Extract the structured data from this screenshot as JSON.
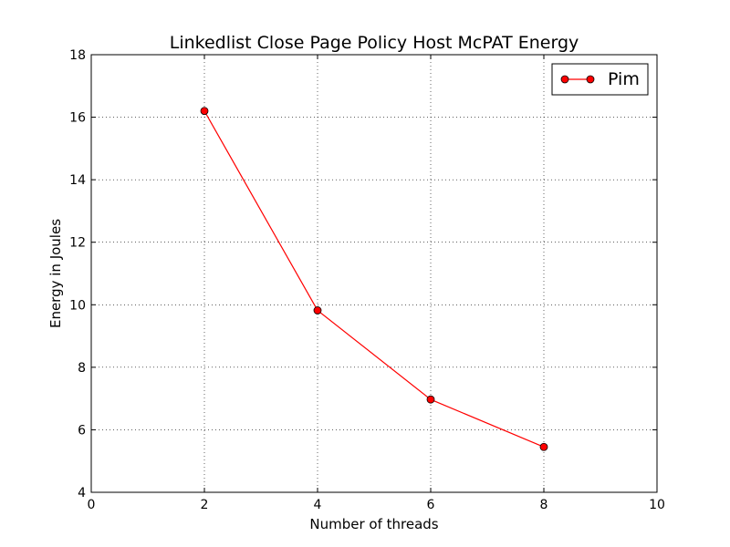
{
  "chart_data": {
    "type": "line",
    "title": "Linkedlist Close Page Policy Host McPAT Energy",
    "xlabel": "Number of threads",
    "ylabel": "Energy in Joules",
    "xlim": [
      0,
      10
    ],
    "ylim": [
      4,
      18
    ],
    "xticks": [
      "0",
      "2",
      "4",
      "6",
      "8",
      "10"
    ],
    "yticks": [
      "4",
      "6",
      "8",
      "10",
      "12",
      "14",
      "16",
      "18"
    ],
    "grid": true,
    "legend_position": "top-right",
    "series": [
      {
        "name": "Pim",
        "color": "#ff0000",
        "marker": "circle",
        "x": [
          2,
          4,
          6,
          8
        ],
        "y": [
          16.2,
          9.82,
          6.97,
          5.45
        ]
      }
    ]
  }
}
